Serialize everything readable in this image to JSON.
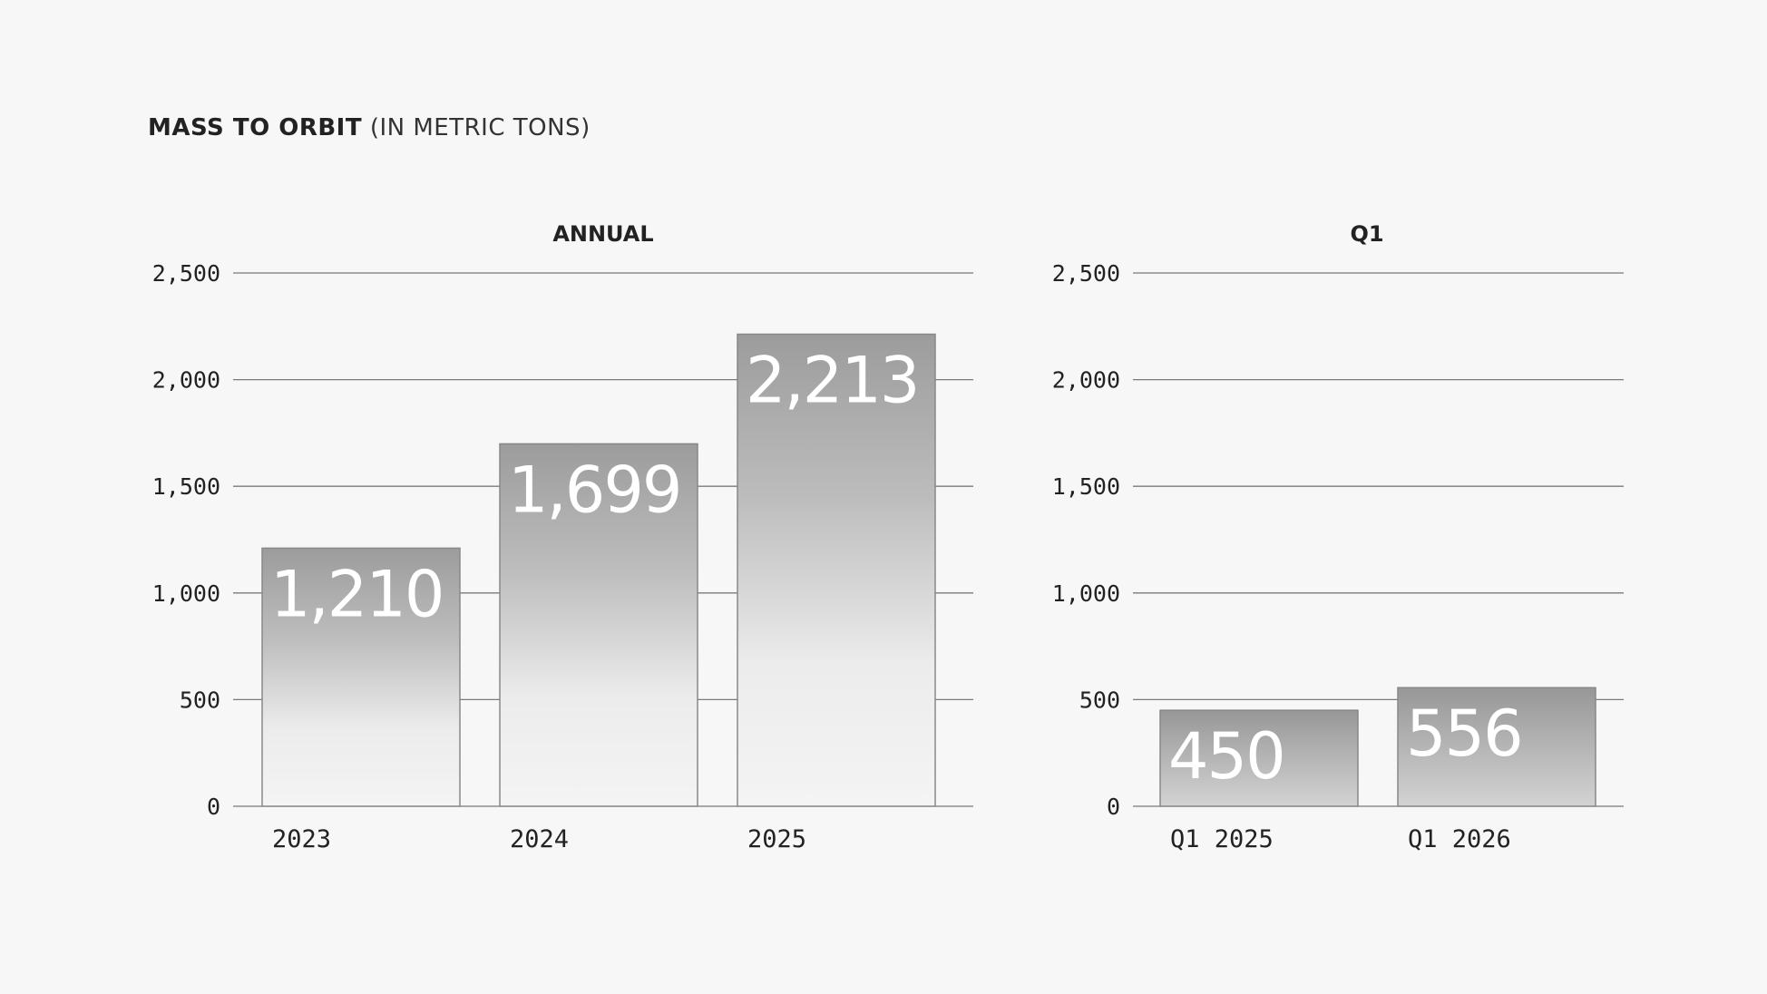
{
  "title": {
    "bold": "MASS TO ORBIT",
    "light": "(IN METRIC TONS)"
  },
  "chart_data": [
    {
      "type": "bar",
      "title": "ANNUAL",
      "categories": [
        "2023",
        "2024",
        "2025"
      ],
      "values": [
        1210,
        1699,
        2213
      ],
      "value_labels": [
        "1,210",
        "1,699",
        "2,213"
      ],
      "ylim": [
        0,
        2500
      ],
      "yticks": [
        0,
        500,
        1000,
        1500,
        2000,
        2500
      ],
      "ytick_labels": [
        "0",
        "500",
        "1,000",
        "1,500",
        "2,000",
        "2,500"
      ],
      "grid": true
    },
    {
      "type": "bar",
      "title": "Q1",
      "categories": [
        "Q1 2025",
        "Q1 2026"
      ],
      "values": [
        450,
        556
      ],
      "value_labels": [
        "450",
        "556"
      ],
      "ylim": [
        0,
        2500
      ],
      "yticks": [
        0,
        500,
        1000,
        1500,
        2000,
        2500
      ],
      "ytick_labels": [
        "0",
        "500",
        "1,000",
        "1,500",
        "2,000",
        "2,500"
      ],
      "grid": true
    }
  ]
}
